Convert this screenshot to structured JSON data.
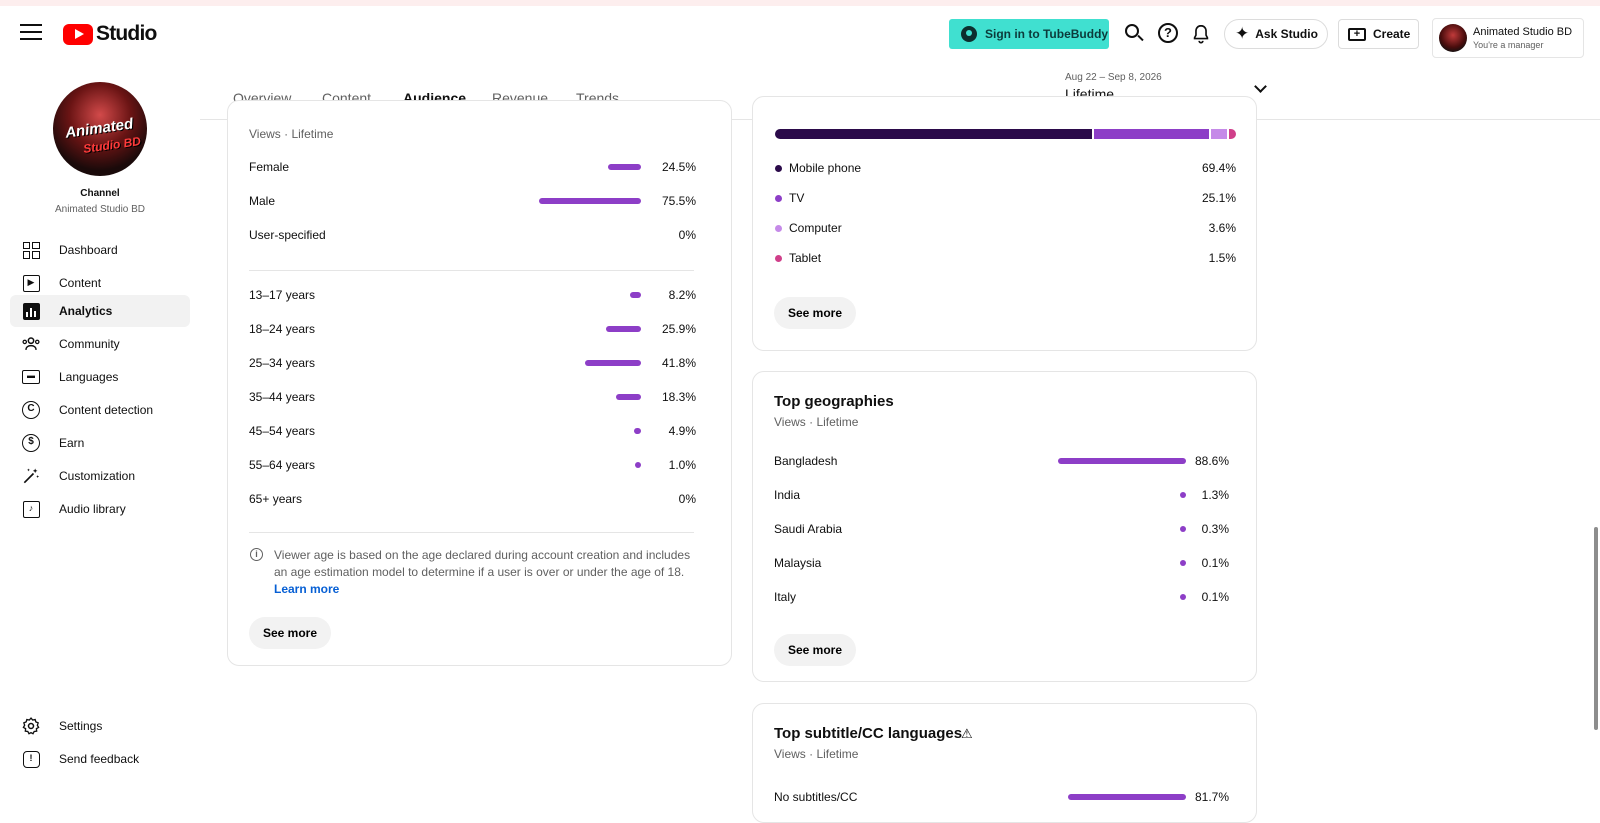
{
  "app": {
    "logo_text": "Studio"
  },
  "header": {
    "tubebuddy_label": "Sign in to TubeBuddy",
    "ask_studio_label": "Ask Studio",
    "create_label": "Create",
    "account_name": "Animated Studio BD",
    "account_role": "You're a manager"
  },
  "channel": {
    "avatar_line1": "Animated",
    "avatar_line2": "Studio BD",
    "label": "Channel",
    "name": "Animated Studio BD"
  },
  "sidebar": {
    "items": [
      {
        "label": "Dashboard",
        "icon": "dashboard-icon"
      },
      {
        "label": "Content",
        "icon": "content-icon"
      },
      {
        "label": "Analytics",
        "icon": "analytics-icon",
        "active": true
      },
      {
        "label": "Community",
        "icon": "community-icon"
      },
      {
        "label": "Languages",
        "icon": "languages-icon"
      },
      {
        "label": "Content detection",
        "icon": "copyright-icon"
      },
      {
        "label": "Earn",
        "icon": "dollar-icon"
      },
      {
        "label": "Customization",
        "icon": "magic-wand-icon"
      },
      {
        "label": "Audio library",
        "icon": "audio-library-icon"
      }
    ],
    "footer": [
      {
        "label": "Settings",
        "icon": "gear-icon"
      },
      {
        "label": "Send feedback",
        "icon": "feedback-icon"
      }
    ]
  },
  "tabs": [
    {
      "label": "Overview"
    },
    {
      "label": "Content"
    },
    {
      "label": "Audience",
      "active": true
    },
    {
      "label": "Revenue"
    },
    {
      "label": "Trends"
    }
  ],
  "date_range": {
    "range": "Aug 22 – Sep 8, 2026",
    "period": "Lifetime"
  },
  "demographics": {
    "subtitle": "Views · Lifetime",
    "gender": [
      {
        "label": "Female",
        "value": 24.5,
        "display": "24.5%"
      },
      {
        "label": "Male",
        "value": 75.5,
        "display": "75.5%"
      },
      {
        "label": "User-specified",
        "value": 0,
        "display": "0%"
      }
    ],
    "age": [
      {
        "label": "13–17 years",
        "value": 8.2,
        "display": "8.2%"
      },
      {
        "label": "18–24 years",
        "value": 25.9,
        "display": "25.9%"
      },
      {
        "label": "25–34 years",
        "value": 41.8,
        "display": "41.8%"
      },
      {
        "label": "35–44 years",
        "value": 18.3,
        "display": "18.3%"
      },
      {
        "label": "45–54 years",
        "value": 4.9,
        "display": "4.9%"
      },
      {
        "label": "55–64 years",
        "value": 1.0,
        "display": "1.0%"
      },
      {
        "label": "65+ years",
        "value": 0,
        "display": "0%"
      }
    ],
    "note": "Viewer age is based on the age declared during account creation and includes an age estimation model to determine if a user is over or under the age of 18.",
    "learn_more": "Learn more",
    "see_more": "See more"
  },
  "devices": {
    "items": [
      {
        "label": "Mobile phone",
        "value": 69.4,
        "display": "69.4%",
        "color": "#2b0a4a"
      },
      {
        "label": "TV",
        "value": 25.1,
        "display": "25.1%",
        "color": "#8d3ec7"
      },
      {
        "label": "Computer",
        "value": 3.6,
        "display": "3.6%",
        "color": "#c58ae8"
      },
      {
        "label": "Tablet",
        "value": 1.5,
        "display": "1.5%",
        "color": "#d03f8a"
      }
    ],
    "see_more": "See more"
  },
  "geographies": {
    "title": "Top geographies",
    "subtitle": "Views · Lifetime",
    "items": [
      {
        "label": "Bangladesh",
        "value": 88.6,
        "display": "88.6%"
      },
      {
        "label": "India",
        "value": 1.3,
        "display": "1.3%"
      },
      {
        "label": "Saudi Arabia",
        "value": 0.3,
        "display": "0.3%"
      },
      {
        "label": "Malaysia",
        "value": 0.1,
        "display": "0.1%"
      },
      {
        "label": "Italy",
        "value": 0.1,
        "display": "0.1%"
      }
    ],
    "see_more": "See more"
  },
  "subtitles": {
    "title": "Top subtitle/CC languages",
    "subtitle": "Views · Lifetime",
    "items": [
      {
        "label": "No subtitles/CC",
        "value": 81.7,
        "display": "81.7%"
      }
    ]
  },
  "colors": {
    "accent": "#8d3ec7",
    "tubebuddy": "#40e0d0",
    "link": "#065fd4"
  }
}
